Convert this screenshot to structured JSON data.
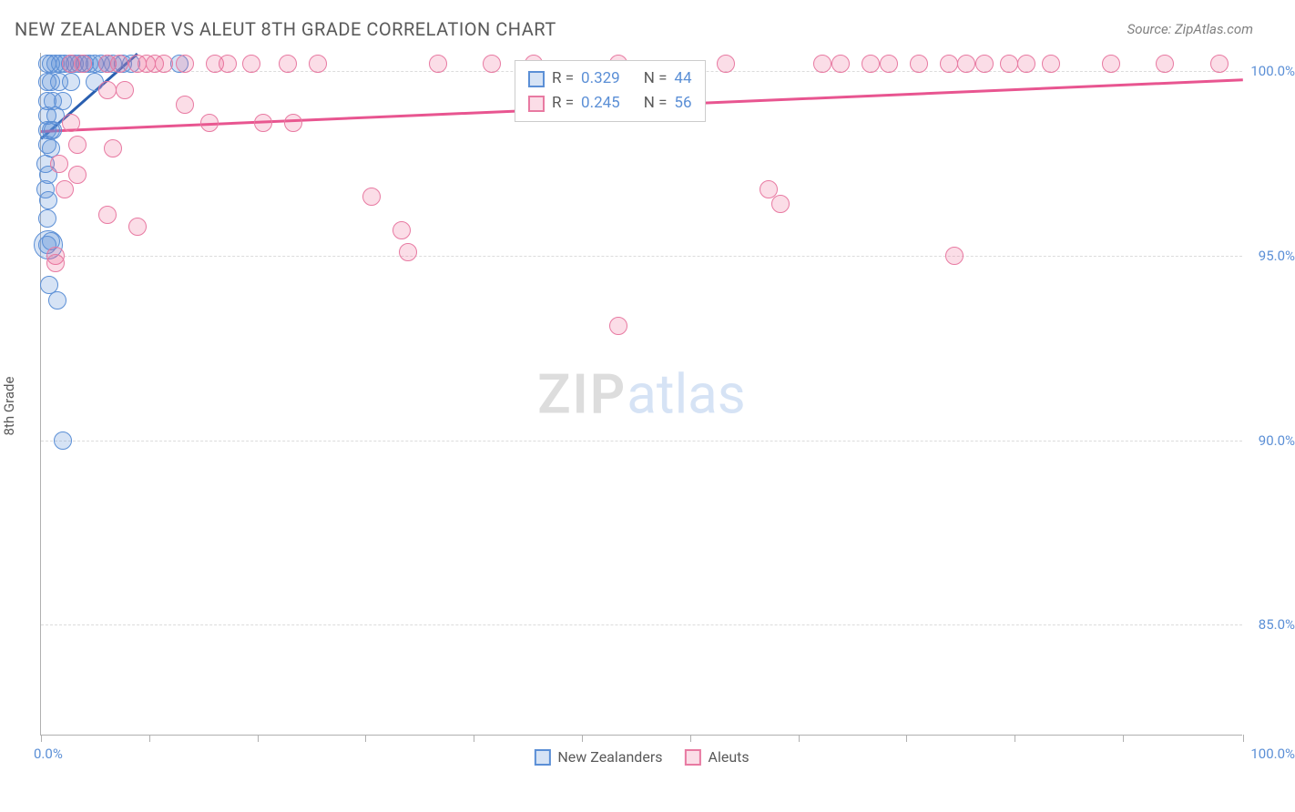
{
  "title": "NEW ZEALANDER VS ALEUT 8TH GRADE CORRELATION CHART",
  "source": "Source: ZipAtlas.com",
  "ylabel": "8th Grade",
  "watermark_a": "ZIP",
  "watermark_b": "atlas",
  "chart": {
    "type": "scatter",
    "xlim": [
      0,
      100
    ],
    "ylim": [
      82,
      100.5
    ],
    "yticks": [
      85,
      90,
      95,
      100
    ],
    "ytick_labels": [
      "85.0%",
      "90.0%",
      "95.0%",
      "100.0%"
    ],
    "xticks": [
      0,
      9,
      18,
      27,
      36,
      45,
      54,
      63,
      72,
      81,
      90,
      100
    ],
    "xtick_labels_start": "0.0%",
    "xtick_labels_end": "100.0%",
    "background_color": "#ffffff",
    "grid_color": "#dcdcdc",
    "series": [
      {
        "name": "New Zealanders",
        "fill": "rgba(91,143,214,0.25)",
        "stroke": "#5b8fd6",
        "marker_radius": 10,
        "trend": {
          "x1": 0,
          "y1": 98.2,
          "x2": 8,
          "y2": 100.5,
          "color": "#2a5fb0"
        },
        "r_label": "R =",
        "r_value": "0.329",
        "n_label": "N =",
        "n_value": "44",
        "points": [
          [
            0.5,
            100.2
          ],
          [
            0.8,
            100.2
          ],
          [
            1.2,
            100.2
          ],
          [
            1.6,
            100.2
          ],
          [
            2.0,
            100.2
          ],
          [
            2.4,
            100.2
          ],
          [
            2.8,
            100.2
          ],
          [
            3.2,
            100.2
          ],
          [
            3.6,
            100.2
          ],
          [
            4.0,
            100.2
          ],
          [
            4.5,
            100.2
          ],
          [
            5.0,
            100.2
          ],
          [
            5.5,
            100.2
          ],
          [
            6.0,
            100.2
          ],
          [
            6.8,
            100.2
          ],
          [
            7.5,
            100.2
          ],
          [
            11.5,
            100.2
          ],
          [
            0.5,
            99.7
          ],
          [
            0.8,
            99.7
          ],
          [
            1.5,
            99.7
          ],
          [
            2.5,
            99.7
          ],
          [
            4.5,
            99.7
          ],
          [
            0.5,
            99.2
          ],
          [
            1.0,
            99.2
          ],
          [
            1.8,
            99.2
          ],
          [
            0.5,
            98.8
          ],
          [
            1.2,
            98.8
          ],
          [
            0.5,
            98.4
          ],
          [
            0.8,
            98.4
          ],
          [
            1.0,
            98.4
          ],
          [
            0.5,
            98.0
          ],
          [
            0.8,
            97.9
          ],
          [
            0.4,
            97.5
          ],
          [
            0.6,
            97.2
          ],
          [
            0.4,
            96.8
          ],
          [
            0.6,
            96.5
          ],
          [
            0.5,
            96.0
          ],
          [
            0.8,
            95.4
          ],
          [
            0.5,
            95.3
          ],
          [
            0.7,
            94.2
          ],
          [
            1.4,
            93.8
          ],
          [
            1.8,
            90.0
          ]
        ],
        "big_points": [
          [
            0.6,
            95.3,
            16
          ]
        ]
      },
      {
        "name": "Aleuts",
        "fill": "rgba(236,102,146,0.22)",
        "stroke": "#e87aa2",
        "marker_radius": 10,
        "trend": {
          "x1": 0,
          "y1": 98.4,
          "x2": 100,
          "y2": 99.8,
          "color": "#e85590"
        },
        "r_label": "R =",
        "r_value": "0.245",
        "n_label": "N =",
        "n_value": "56",
        "points": [
          [
            2.5,
            100.2
          ],
          [
            3.5,
            100.2
          ],
          [
            5.5,
            100.2
          ],
          [
            6.5,
            100.2
          ],
          [
            8.0,
            100.2
          ],
          [
            8.8,
            100.2
          ],
          [
            9.5,
            100.2
          ],
          [
            10.2,
            100.2
          ],
          [
            12.0,
            100.2
          ],
          [
            14.5,
            100.2
          ],
          [
            15.5,
            100.2
          ],
          [
            17.5,
            100.2
          ],
          [
            20.5,
            100.2
          ],
          [
            23.0,
            100.2
          ],
          [
            33.0,
            100.2
          ],
          [
            37.5,
            100.2
          ],
          [
            41.0,
            100.2
          ],
          [
            48.0,
            100.2
          ],
          [
            57.0,
            100.2
          ],
          [
            65.0,
            100.2
          ],
          [
            66.5,
            100.2
          ],
          [
            69.0,
            100.2
          ],
          [
            70.5,
            100.2
          ],
          [
            73.0,
            100.2
          ],
          [
            75.5,
            100.2
          ],
          [
            77.0,
            100.2
          ],
          [
            78.5,
            100.2
          ],
          [
            80.5,
            100.2
          ],
          [
            82.0,
            100.2
          ],
          [
            84.0,
            100.2
          ],
          [
            89.0,
            100.2
          ],
          [
            93.5,
            100.2
          ],
          [
            98.0,
            100.2
          ],
          [
            5.5,
            99.5
          ],
          [
            7.0,
            99.5
          ],
          [
            12.0,
            99.1
          ],
          [
            14.0,
            98.6
          ],
          [
            18.5,
            98.6
          ],
          [
            21.0,
            98.6
          ],
          [
            2.5,
            98.6
          ],
          [
            6.0,
            97.9
          ],
          [
            1.5,
            97.5
          ],
          [
            3.0,
            97.2
          ],
          [
            2.0,
            96.8
          ],
          [
            5.5,
            96.1
          ],
          [
            8.0,
            95.8
          ],
          [
            3.0,
            98.0
          ],
          [
            27.5,
            96.6
          ],
          [
            30.0,
            95.7
          ],
          [
            30.5,
            95.1
          ],
          [
            60.5,
            96.8
          ],
          [
            61.5,
            96.4
          ],
          [
            76.0,
            95.0
          ],
          [
            48.0,
            93.1
          ],
          [
            1.2,
            95.0
          ],
          [
            1.2,
            94.8
          ]
        ],
        "big_points": []
      }
    ]
  },
  "legend_bottom": [
    {
      "label": "New Zealanders",
      "fill": "rgba(91,143,214,0.25)",
      "stroke": "#5b8fd6"
    },
    {
      "label": "Aleuts",
      "fill": "rgba(236,102,146,0.22)",
      "stroke": "#e87aa2"
    }
  ]
}
